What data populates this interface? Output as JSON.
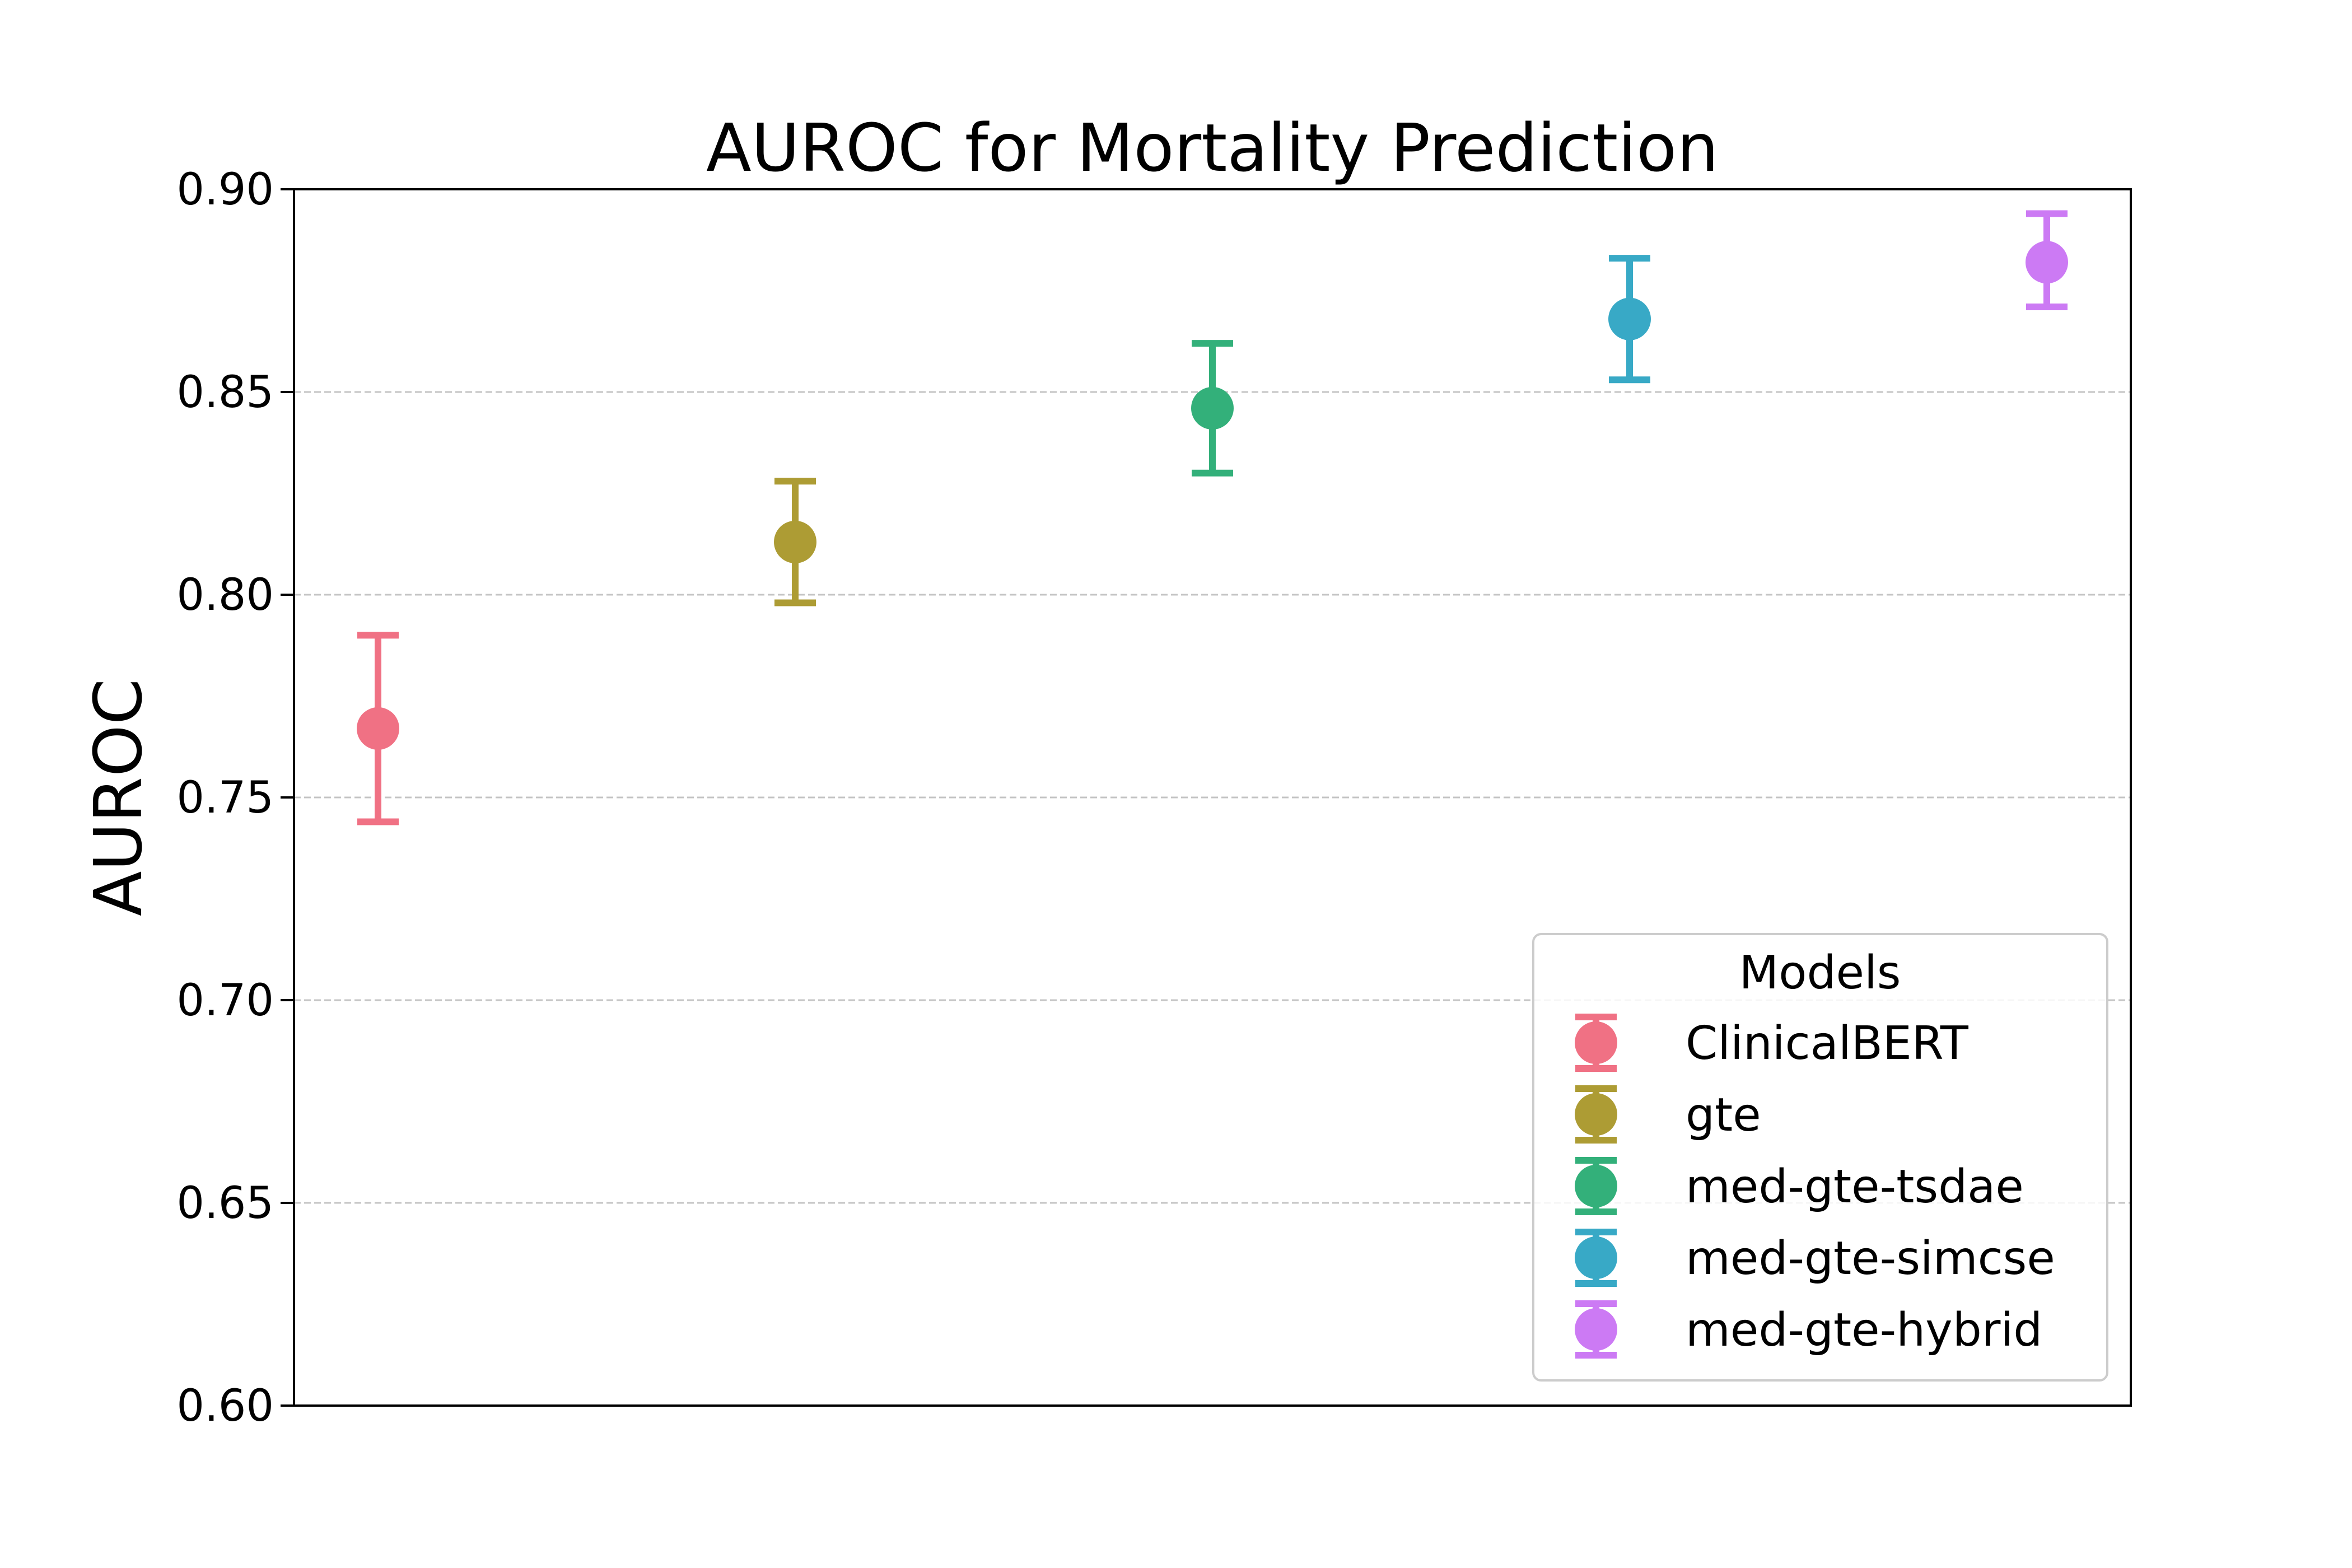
{
  "chart_data": {
    "type": "scatter",
    "title": "AUROC for Mortality Prediction",
    "xlabel": "",
    "ylabel": "AUROC",
    "ylim": [
      0.6,
      0.9
    ],
    "yticks": [
      "0.60",
      "0.65",
      "0.70",
      "0.75",
      "0.80",
      "0.85",
      "0.90"
    ],
    "grid": "y-dashed",
    "legend": {
      "title": "Models",
      "placement": "lower-right"
    },
    "series": [
      {
        "name": "ClinicalBERT",
        "value": 0.767,
        "ci_low": 0.744,
        "ci_high": 0.79,
        "color": "#f07184"
      },
      {
        "name": "gte",
        "value": 0.813,
        "ci_low": 0.798,
        "ci_high": 0.828,
        "color": "#ad9c34"
      },
      {
        "name": "med-gte-tsdae",
        "value": 0.846,
        "ci_low": 0.83,
        "ci_high": 0.862,
        "color": "#33b07a"
      },
      {
        "name": "med-gte-simcse",
        "value": 0.868,
        "ci_low": 0.853,
        "ci_high": 0.883,
        "color": "#38a9c6"
      },
      {
        "name": "med-gte-hybrid",
        "value": 0.882,
        "ci_low": 0.871,
        "ci_high": 0.894,
        "color": "#cc7af4"
      }
    ]
  }
}
